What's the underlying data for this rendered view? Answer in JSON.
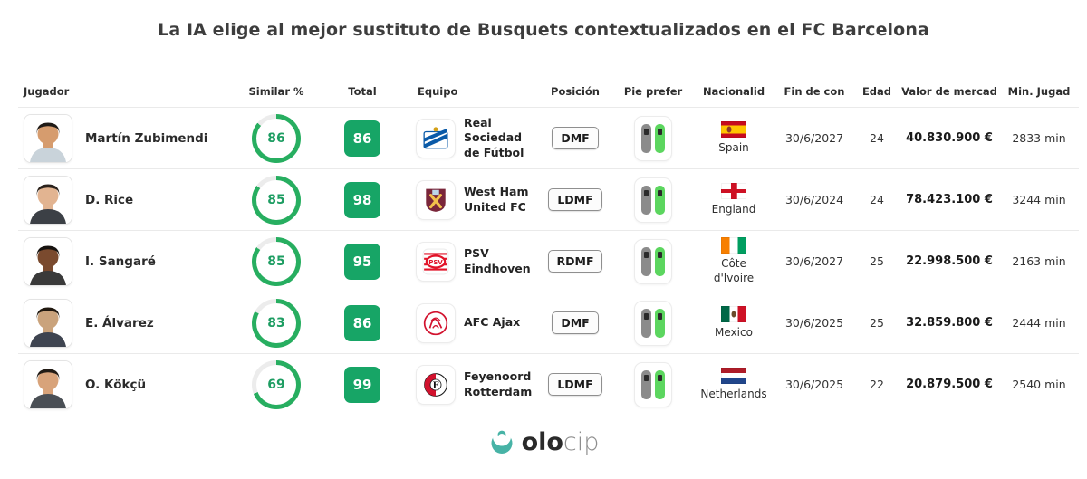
{
  "title": "La IA elige al mejor sustituto de Busquets contextualizados en el FC Barcelona",
  "colors": {
    "ring_green": "#27ae60",
    "ring_track": "#ececec",
    "badge_green": "#17a566",
    "boot_green": "#5cd65f",
    "boot_grey": "#8b8b8b",
    "brand_teal": "#47b3a6"
  },
  "table": {
    "headers": [
      "Jugador",
      "Similar %",
      "Total",
      "Equipo",
      "Posición",
      "Pie prefer",
      "Nacionalid",
      "Fin de con",
      "Edad",
      "Valor de mercad",
      "Min. Jugad"
    ],
    "rows": [
      {
        "player": "Martín Zubimendi",
        "similar": 86,
        "total": 86,
        "team": "Real Sociedad de Fútbol",
        "team_logo": "real-sociedad",
        "position": "DMF",
        "preferred_foot": "right",
        "nationality": "Spain",
        "flag": {
          "layout": "horizontal",
          "colors": [
            "#c60b1e",
            "#ffc400",
            "#c60b1e"
          ],
          "weights": [
            1,
            2,
            1
          ],
          "emblem": "left",
          "emblem_color": "#8f3b2a"
        },
        "contract_end": "30/6/2027",
        "age": "24",
        "market_value": "40.830.900 €",
        "minutes": "2833 min",
        "avatar": {
          "skin": "#d69c6e",
          "hair": "#1f1a16",
          "shirt": "#c9d3da"
        }
      },
      {
        "player": "D. Rice",
        "similar": 85,
        "total": 98,
        "team": "West Ham United FC",
        "team_logo": "west-ham",
        "position": "LDMF",
        "preferred_foot": "right",
        "nationality": "England",
        "flag": {
          "layout": "cross",
          "colors": [
            "#ffffff",
            "#ce1124"
          ]
        },
        "contract_end": "30/6/2024",
        "age": "24",
        "market_value": "78.423.100 €",
        "minutes": "3244 min",
        "avatar": {
          "skin": "#e2b491",
          "hair": "#2a221c",
          "shirt": "#3c4046"
        }
      },
      {
        "player": "I. Sangaré",
        "similar": 85,
        "total": 95,
        "team": "PSV Eindhoven",
        "team_logo": "psv",
        "position": "RDMF",
        "preferred_foot": "right",
        "nationality": "Côte\nd'Ivoire",
        "flag": {
          "layout": "vertical",
          "colors": [
            "#f77f00",
            "#ffffff",
            "#009e60"
          ]
        },
        "contract_end": "30/6/2027",
        "age": "25",
        "market_value": "22.998.500 €",
        "minutes": "2163 min",
        "avatar": {
          "skin": "#7a4a2e",
          "hair": "#171310",
          "shirt": "#3a3a3a"
        }
      },
      {
        "player": "E. Álvarez",
        "similar": 83,
        "total": 86,
        "team": "AFC Ajax",
        "team_logo": "ajax",
        "position": "DMF",
        "preferred_foot": "right",
        "nationality": "Mexico",
        "flag": {
          "layout": "vertical",
          "colors": [
            "#006847",
            "#ffffff",
            "#ce1126"
          ],
          "emblem": "center",
          "emblem_color": "#6b4a2a"
        },
        "contract_end": "30/6/2025",
        "age": "25",
        "market_value": "32.859.800 €",
        "minutes": "2444 min",
        "avatar": {
          "skin": "#caa37c",
          "hair": "#20180f",
          "shirt": "#3e4450"
        }
      },
      {
        "player": "O. Kökçü",
        "similar": 69,
        "total": 99,
        "team": "Feyenoord Rotterdam",
        "team_logo": "feyenoord",
        "position": "LDMF",
        "preferred_foot": "right",
        "nationality": "Netherlands",
        "flag": {
          "layout": "horizontal",
          "colors": [
            "#ae1c28",
            "#ffffff",
            "#21468b"
          ]
        },
        "contract_end": "30/6/2025",
        "age": "22",
        "market_value": "20.879.500 €",
        "minutes": "2540 min",
        "avatar": {
          "skin": "#d8a37a",
          "hair": "#221b15",
          "shirt": "#4a4f55"
        }
      }
    ]
  },
  "footer": {
    "brand_bold": "olo",
    "brand_light": "cip"
  }
}
